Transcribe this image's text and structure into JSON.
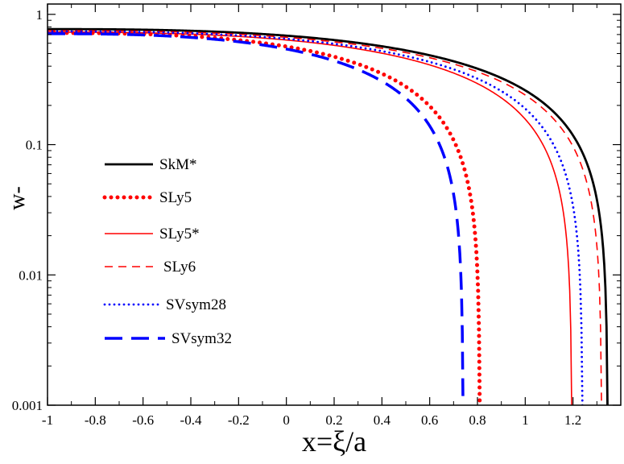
{
  "chart_data": {
    "type": "line",
    "title": "",
    "xlabel": "x=ξ/a",
    "ylabel": "w-",
    "xlim": [
      -1,
      1.4
    ],
    "ylim": [
      0.001,
      1.2
    ],
    "yscale": "log",
    "grid": false,
    "legend_position": "center-left",
    "x_ticks": [
      -1,
      -0.8,
      -0.6,
      -0.4,
      -0.2,
      0,
      0.2,
      0.4,
      0.6,
      0.8,
      1,
      1.2
    ],
    "x_tick_labels": [
      "-1",
      "-0.8",
      "-0.6",
      "-0.4",
      "-0.2",
      "0",
      "0.2",
      "0.4",
      "0.6",
      "0.8",
      "1",
      "1.2"
    ],
    "y_ticks": [
      0.001,
      0.01,
      0.1,
      1
    ],
    "y_tick_labels": [
      "0.001",
      "0.01",
      "0.1",
      "1"
    ],
    "series": [
      {
        "name": "SkM*",
        "color": "#000000",
        "style": "solid",
        "width": 2.8,
        "x0": 1.345,
        "y_at_minus1": 0.77
      },
      {
        "name": "SLy5",
        "color": "#ff0000",
        "style": "dotted",
        "width": 5,
        "x0": 0.81,
        "y_at_minus1": 0.72
      },
      {
        "name": "SLy5*",
        "color": "#ff0000",
        "style": "solid",
        "width": 1.6,
        "x0": 1.195,
        "y_at_minus1": 0.73
      },
      {
        "name": "SLy6",
        "color": "#ff0000",
        "style": "dashed",
        "width": 1.6,
        "x0": 1.32,
        "y_at_minus1": 0.75
      },
      {
        "name": "SVsym28",
        "color": "#0000ff",
        "style": "dotted",
        "width": 2.2,
        "x0": 1.24,
        "y_at_minus1": 0.74
      },
      {
        "name": "SVsym32",
        "color": "#0000ff",
        "style": "longdash",
        "width": 3.5,
        "x0": 0.74,
        "y_at_minus1": 0.71
      }
    ]
  }
}
